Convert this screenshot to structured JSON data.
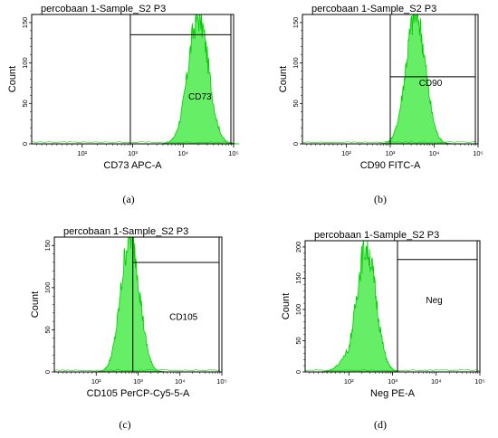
{
  "chart_data": [
    {
      "type": "area",
      "panel_label": "(a)",
      "title": "percobaan 1-Sample_S2 P3",
      "xlabel": "CD73 APC-A",
      "ylabel": "Count",
      "x_scale": "log",
      "x_ticks": [
        "10²",
        "10³",
        "10⁴",
        "10⁵"
      ],
      "ylim": [
        0,
        160
      ],
      "y_ticks": [
        0,
        50,
        100,
        150
      ],
      "gate": {
        "label": "CD73",
        "x_start": 900,
        "height": 135
      },
      "histogram": {
        "peak_x": 20000,
        "peak_count": 158,
        "spread": 0.2,
        "range": [
          2000,
          130000
        ]
      },
      "fill_color": "#66ee66",
      "line_color": "#00cc00"
    },
    {
      "type": "area",
      "panel_label": "(b)",
      "title": "percobaan 1-Sample_S2 P3",
      "xlabel": "CD90 FITC-A",
      "ylabel": "Count",
      "x_scale": "log",
      "x_ticks": [
        "10²",
        "10³",
        "10⁴",
        "10⁵"
      ],
      "ylim": [
        0,
        160
      ],
      "y_ticks": [
        0,
        50,
        100,
        150
      ],
      "gate": {
        "label": "CD90",
        "x_start": 1000,
        "height": 83
      },
      "histogram": {
        "peak_x": 3800,
        "peak_count": 162,
        "spread": 0.22,
        "range": [
          400,
          25000
        ]
      },
      "fill_color": "#66ee66",
      "line_color": "#00cc00"
    },
    {
      "type": "area",
      "panel_label": "(c)",
      "title": "percobaan 1-Sample_S2 P3",
      "xlabel": "CD105 PerCP-Cy5-5-A",
      "ylabel": "Count",
      "x_scale": "log",
      "x_ticks": [
        "10²",
        "10³",
        "10⁴",
        "10⁵"
      ],
      "ylim": [
        0,
        160
      ],
      "y_ticks": [
        0,
        50,
        100,
        150
      ],
      "gate": {
        "label": "CD105",
        "x_start": 750,
        "height": 130
      },
      "histogram": {
        "peak_x": 650,
        "peak_count": 162,
        "spread": 0.22,
        "range": [
          80,
          6000
        ]
      },
      "fill_color": "#66ee66",
      "line_color": "#00cc00"
    },
    {
      "type": "area",
      "panel_label": "(d)",
      "title": "percobaan 1-Sample_S2 P3",
      "xlabel": "Neg PE-A",
      "ylabel": "Count",
      "x_scale": "log",
      "x_ticks": [
        "10²",
        "10³",
        "10⁴",
        "10⁵"
      ],
      "ylim": [
        0,
        210
      ],
      "y_ticks": [
        0,
        50,
        100,
        150,
        200
      ],
      "gate": {
        "label": "Neg",
        "x_start": 1300,
        "height": 180
      },
      "histogram": {
        "peak_x": 250,
        "peak_count": 200,
        "spread": 0.22,
        "range": [
          25,
          1300
        ]
      },
      "fill_color": "#66ee66",
      "line_color": "#00cc00"
    }
  ]
}
